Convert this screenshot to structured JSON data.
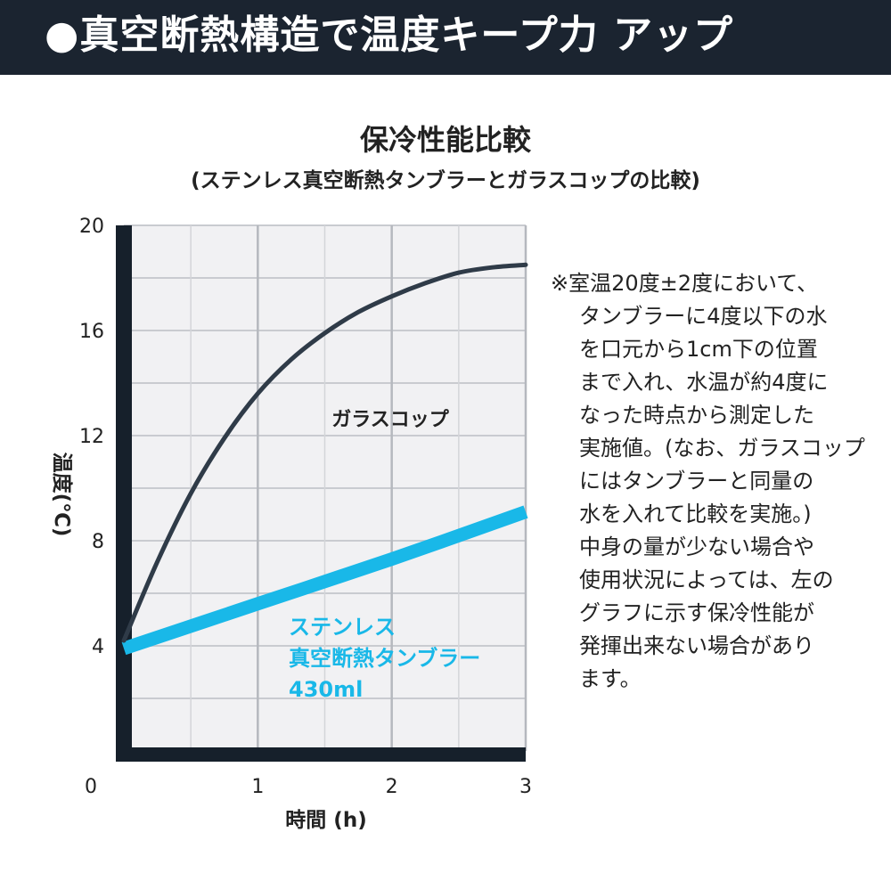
{
  "header": {
    "title": "●真空断熱構造で温度キープ力 アップ"
  },
  "chart_data": {
    "type": "line",
    "title": "保冷性能比較",
    "subtitle": "(ステンレス真空断熱タンブラーとガラスコップの比較)",
    "xlabel": "時間 (h)",
    "ylabel": "温度(℃)",
    "xlim": [
      0,
      3
    ],
    "ylim": [
      0,
      20
    ],
    "x_ticks": [
      "0",
      "1",
      "2",
      "3"
    ],
    "y_ticks": [
      "20",
      "16",
      "12",
      "8",
      "4"
    ],
    "grid": true,
    "series": [
      {
        "name": "ガラスコップ",
        "color": "#2f3b48",
        "x": [
          0,
          0.25,
          0.5,
          0.75,
          1.0,
          1.25,
          1.5,
          1.75,
          2.0,
          2.25,
          2.5,
          2.75,
          3.0
        ],
        "y": [
          4.2,
          7.2,
          9.8,
          11.9,
          13.6,
          14.9,
          15.9,
          16.7,
          17.3,
          17.8,
          18.2,
          18.4,
          18.5
        ]
      },
      {
        "name": "ステンレス真空断熱タンブラー430ml",
        "label_lines": [
          "ステンレス",
          "真空断熱タンブラー",
          "430ml"
        ],
        "color": "#19b8e8",
        "x": [
          0,
          1,
          2,
          3
        ],
        "y": [
          3.9,
          5.6,
          7.3,
          9.1
        ]
      }
    ]
  },
  "note": {
    "lines": [
      "※室温20度±2度において、",
      "タンブラーに4度以下の水",
      "を口元から1cm下の位置",
      "まで入れ、水温が約4度に",
      "なった時点から測定した",
      "実施値。(なお、ガラスコップ",
      "にはタンブラーと同量の",
      "水を入れて比較を実施。)",
      "中身の量が少ない場合や",
      "使用状況によっては、左の",
      "グラフに示す保冷性能が",
      "発揮出来ない場合があり",
      "ます。"
    ]
  }
}
